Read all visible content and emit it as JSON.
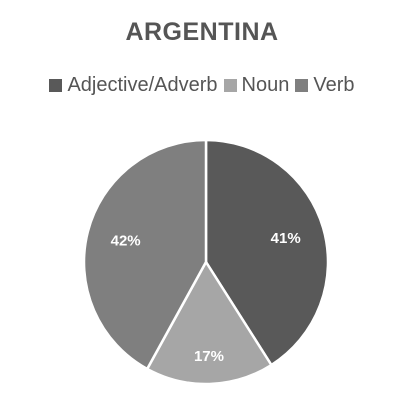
{
  "chart_data": {
    "type": "pie",
    "title": "ARGENTINA",
    "legend_position": "top",
    "categories": [
      "Adjective/Adverb",
      "Noun",
      "Verb"
    ],
    "values": [
      41,
      17,
      42
    ],
    "labels": [
      "41%",
      "17%",
      "42%"
    ],
    "colors": [
      "#595959",
      "#a6a6a6",
      "#7f7f7f"
    ]
  }
}
